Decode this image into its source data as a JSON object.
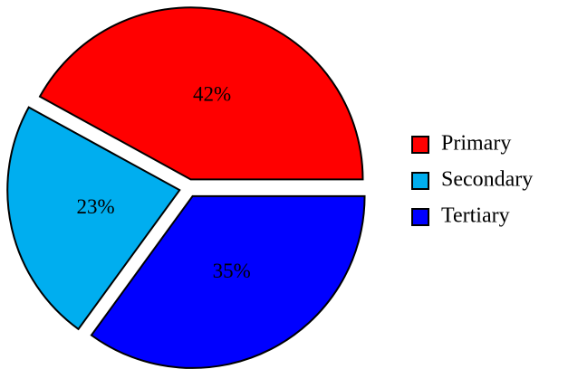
{
  "chart_data": {
    "type": "pie",
    "categories": [
      "Primary",
      "Secondary",
      "Tertiary"
    ],
    "values": [
      42,
      23,
      35
    ],
    "value_labels": [
      "42%",
      "23%",
      "35%"
    ],
    "colors": [
      "#ff0000",
      "#00aeef",
      "#0000ff"
    ],
    "legend": "right"
  }
}
